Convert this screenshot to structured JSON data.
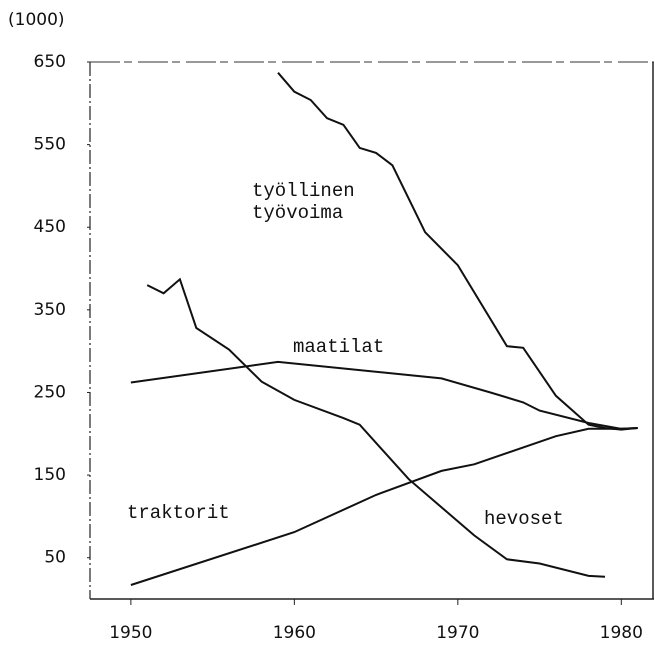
{
  "chart_data": {
    "type": "line",
    "ylabel": "(1000)",
    "xlim": [
      1947.5,
      1982
    ],
    "xticks": [
      1950,
      1960,
      1970,
      1980
    ],
    "ylim": [
      0,
      650
    ],
    "yticks": [
      50,
      150,
      250,
      350,
      450,
      550,
      650
    ],
    "series": [
      {
        "name": "työllinen työvoima",
        "color": "#111111",
        "x": [
          1959,
          1960,
          1961,
          1962,
          1963,
          1964,
          1965,
          1966,
          1968,
          1970,
          1973,
          1974,
          1976,
          1978,
          1979,
          1980,
          1981
        ],
        "values": [
          637,
          614,
          604,
          582,
          574,
          546,
          540,
          525,
          444,
          404,
          306,
          304,
          246,
          211,
          207,
          205,
          207
        ]
      },
      {
        "name": "maatilat",
        "color": "#111111",
        "x": [
          1950,
          1959,
          1969,
          1972,
          1974,
          1975,
          1978,
          1980,
          1981
        ],
        "values": [
          262,
          287,
          267,
          250,
          238,
          228,
          213,
          206,
          207
        ]
      },
      {
        "name": "traktorit",
        "color": "#111111",
        "x": [
          1950,
          1960,
          1965,
          1969,
          1971,
          1976,
          1978,
          1980,
          1981
        ],
        "values": [
          17,
          81,
          126,
          155,
          163,
          197,
          206,
          206,
          207
        ]
      },
      {
        "name": "hevoset",
        "color": "#111111",
        "x": [
          1951,
          1952,
          1953,
          1954,
          1956,
          1958,
          1960,
          1963,
          1964,
          1967,
          1971,
          1973,
          1975,
          1978,
          1979
        ],
        "values": [
          380,
          370,
          387,
          328,
          302,
          263,
          241,
          219,
          211,
          145,
          77,
          48,
          43,
          28,
          27
        ]
      }
    ]
  }
}
